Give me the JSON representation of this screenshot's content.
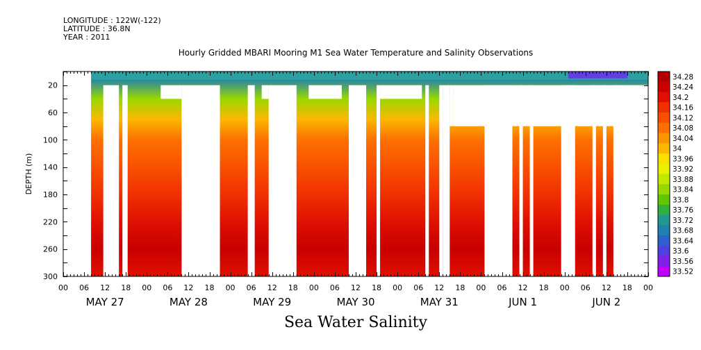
{
  "meta": {
    "longitude": "LONGITUDE : 122W(-122)",
    "latitude": "LATITUDE : 36.8N",
    "year": "YEAR : 2011"
  },
  "chart_data": {
    "type": "heatmap",
    "title": "Hourly Gridded MBARI Mooring M1 Sea Water Temperature and Salinity Observations",
    "xlabel": "Sea Water Salinity",
    "ylabel": "DEPTH (m)",
    "ylim": [
      300,
      0
    ],
    "y_ticks": [
      20,
      60,
      100,
      140,
      180,
      220,
      260,
      300
    ],
    "x_hour_labels": [
      "00",
      "06",
      "12",
      "18",
      "00",
      "06",
      "12",
      "18",
      "00",
      "06",
      "12",
      "18",
      "00",
      "06",
      "12",
      "18",
      "00",
      "06",
      "12",
      "18",
      "00",
      "06",
      "12",
      "18",
      "00",
      "06",
      "12",
      "18",
      "00"
    ],
    "x_day_labels": [
      "MAY 27",
      "MAY 28",
      "MAY 29",
      "MAY 30",
      "MAY 31",
      "JUN  1",
      "JUN  2"
    ],
    "x_range_hours": [
      0,
      168
    ],
    "colorbar": {
      "levels": [
        "34.28",
        "34.24",
        "34.2",
        "34.16",
        "34.12",
        "34.08",
        "34.04",
        "34",
        "33.96",
        "33.92",
        "33.88",
        "33.84",
        "33.8",
        "33.76",
        "33.72",
        "33.68",
        "33.64",
        "33.6",
        "33.56",
        "33.52"
      ],
      "min": 33.52,
      "max": 34.28
    },
    "depth_profile": [
      {
        "depth": 10,
        "salinity": 33.7
      },
      {
        "depth": 40,
        "salinity": 33.84
      },
      {
        "depth": 70,
        "salinity": 33.98
      },
      {
        "depth": 100,
        "salinity": 34.06
      },
      {
        "depth": 140,
        "salinity": 34.12
      },
      {
        "depth": 180,
        "salinity": 34.14
      },
      {
        "depth": 220,
        "salinity": 34.18
      },
      {
        "depth": 260,
        "salinity": 34.24
      },
      {
        "depth": 300,
        "salinity": 34.2
      }
    ],
    "data_gaps_hours": [
      {
        "from": 0,
        "to": 8,
        "depth_from": 0,
        "depth_to": 300
      },
      {
        "from": 11.5,
        "to": 16,
        "depth_from": 20,
        "depth_to": 300
      },
      {
        "from": 17,
        "to": 18.5,
        "depth_from": 20,
        "depth_to": 300
      },
      {
        "from": 28,
        "to": 34,
        "depth_from": 20,
        "depth_to": 40
      },
      {
        "from": 34,
        "to": 45,
        "depth_from": 20,
        "depth_to": 300
      },
      {
        "from": 53,
        "to": 55,
        "depth_from": 20,
        "depth_to": 300
      },
      {
        "from": 57,
        "to": 59,
        "depth_from": 20,
        "depth_to": 40
      },
      {
        "from": 59,
        "to": 67,
        "depth_from": 20,
        "depth_to": 300
      },
      {
        "from": 70.5,
        "to": 80,
        "depth_from": 20,
        "depth_to": 40
      },
      {
        "from": 82,
        "to": 87,
        "depth_from": 20,
        "depth_to": 300
      },
      {
        "from": 90,
        "to": 91,
        "depth_from": 20,
        "depth_to": 300
      },
      {
        "from": 91,
        "to": 103,
        "depth_from": 20,
        "depth_to": 40
      },
      {
        "from": 104,
        "to": 105,
        "depth_from": 20,
        "depth_to": 300
      },
      {
        "from": 108,
        "to": 109,
        "depth_from": 20,
        "depth_to": 300
      },
      {
        "from": 109,
        "to": 111,
        "depth_from": 20,
        "depth_to": 300
      },
      {
        "from": 111,
        "to": 112,
        "depth_from": 20,
        "depth_to": 80
      },
      {
        "from": 112,
        "to": 168,
        "depth_from": 20,
        "depth_to": 80
      },
      {
        "from": 121,
        "to": 129,
        "depth_from": 20,
        "depth_to": 300
      },
      {
        "from": 131,
        "to": 132,
        "depth_from": 20,
        "depth_to": 300
      },
      {
        "from": 134,
        "to": 135,
        "depth_from": 20,
        "depth_to": 300
      },
      {
        "from": 143,
        "to": 147,
        "depth_from": 20,
        "depth_to": 300
      },
      {
        "from": 152,
        "to": 153,
        "depth_from": 20,
        "depth_to": 300
      },
      {
        "from": 155,
        "to": 156,
        "depth_from": 20,
        "depth_to": 300
      },
      {
        "from": 158,
        "to": 168,
        "depth_from": 20,
        "depth_to": 300
      }
    ]
  }
}
